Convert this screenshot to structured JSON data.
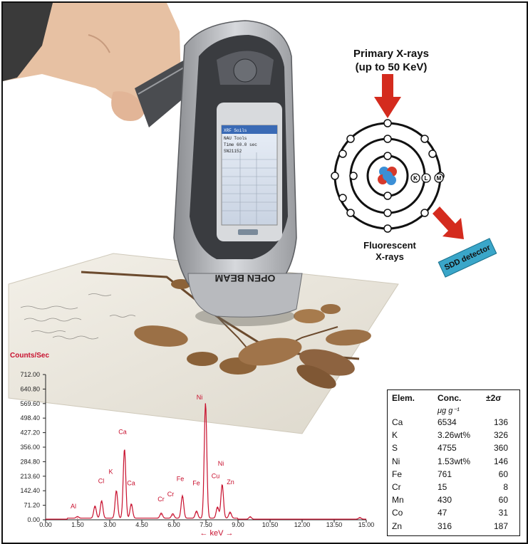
{
  "atom_diagram": {
    "primary_line1": "Primary X-rays",
    "primary_line2": "(up to 50 KeV)",
    "fluor_line1": "Fluorescent",
    "fluor_line2": "X-rays",
    "detector": "SDD detector",
    "shells": [
      "K",
      "L",
      "M"
    ],
    "arrow_color": "#d42b1e"
  },
  "device": {
    "label": "OPEN BEAM",
    "screen_title": "XRF Soils",
    "screen_line1": "NAU Tools",
    "screen_line2": "Time 60.0 sec",
    "screen_line3": "SN21152"
  },
  "spectrum": {
    "ylabel": "Counts/Sec",
    "xlabel": "← keV →",
    "color": "#c8102e"
  },
  "chart_data": {
    "type": "line",
    "title": "",
    "ylabel": "Counts/Sec",
    "xlabel": "keV",
    "xlim": [
      0,
      15
    ],
    "ylim": [
      0,
      712
    ],
    "x_ticks": [
      "0.00",
      "1.50",
      "3.00",
      "4.50",
      "6.00",
      "7.50",
      "9.00",
      "10.50",
      "12.00",
      "13.50",
      "15.00"
    ],
    "y_ticks": [
      "0.00",
      "71.20",
      "142.40",
      "213.60",
      "284.80",
      "356.00",
      "427.20",
      "498.40",
      "569.60",
      "640.80",
      "712.00"
    ],
    "peaks": [
      {
        "x": 1.49,
        "y": 8
      },
      {
        "x": 2.31,
        "y": 60
      },
      {
        "x": 2.62,
        "y": 85
      },
      {
        "x": 3.31,
        "y": 135
      },
      {
        "x": 3.69,
        "y": 340
      },
      {
        "x": 4.01,
        "y": 70
      },
      {
        "x": 5.41,
        "y": 25
      },
      {
        "x": 5.95,
        "y": 22
      },
      {
        "x": 6.4,
        "y": 110
      },
      {
        "x": 7.06,
        "y": 35
      },
      {
        "x": 7.48,
        "y": 565
      },
      {
        "x": 8.04,
        "y": 55
      },
      {
        "x": 8.26,
        "y": 165
      },
      {
        "x": 8.63,
        "y": 30
      },
      {
        "x": 9.57,
        "y": 12
      },
      {
        "x": 14.7,
        "y": 8
      }
    ],
    "annotations": [
      {
        "label": "Al",
        "x": 1.3,
        "y": 55
      },
      {
        "label": "Cl",
        "x": 2.6,
        "y": 180
      },
      {
        "label": "K",
        "x": 3.05,
        "y": 225
      },
      {
        "label": "Ca",
        "x": 3.6,
        "y": 420
      },
      {
        "label": "Ca",
        "x": 4.0,
        "y": 170
      },
      {
        "label": "Cr",
        "x": 5.4,
        "y": 90
      },
      {
        "label": "Cr",
        "x": 5.85,
        "y": 115
      },
      {
        "label": "Fe",
        "x": 6.3,
        "y": 190
      },
      {
        "label": "Fe",
        "x": 7.05,
        "y": 170
      },
      {
        "label": "Ni",
        "x": 7.2,
        "y": 590
      },
      {
        "label": "Ni",
        "x": 8.2,
        "y": 265
      },
      {
        "label": "Cu",
        "x": 7.95,
        "y": 205
      },
      {
        "label": "Zn",
        "x": 8.65,
        "y": 175
      }
    ],
    "grid": false,
    "legend": "none"
  },
  "table": {
    "headers": [
      "Elem.",
      "Conc.",
      "±2σ"
    ],
    "unit": "μg g⁻¹",
    "rows": [
      {
        "elem": "Ca",
        "conc": "6534",
        "err": "136"
      },
      {
        "elem": "K",
        "conc": "3.26wt%",
        "err": "326"
      },
      {
        "elem": "S",
        "conc": "4755",
        "err": "360"
      },
      {
        "elem": "Ni",
        "conc": "1.53wt%",
        "err": "146"
      },
      {
        "elem": "Fe",
        "conc": "761",
        "err": "60"
      },
      {
        "elem": "Cr",
        "conc": "15",
        "err": "8"
      },
      {
        "elem": "Mn",
        "conc": "430",
        "err": "60"
      },
      {
        "elem": "Co",
        "conc": "47",
        "err": "31"
      },
      {
        "elem": "Zn",
        "conc": "316",
        "err": "187"
      }
    ]
  }
}
